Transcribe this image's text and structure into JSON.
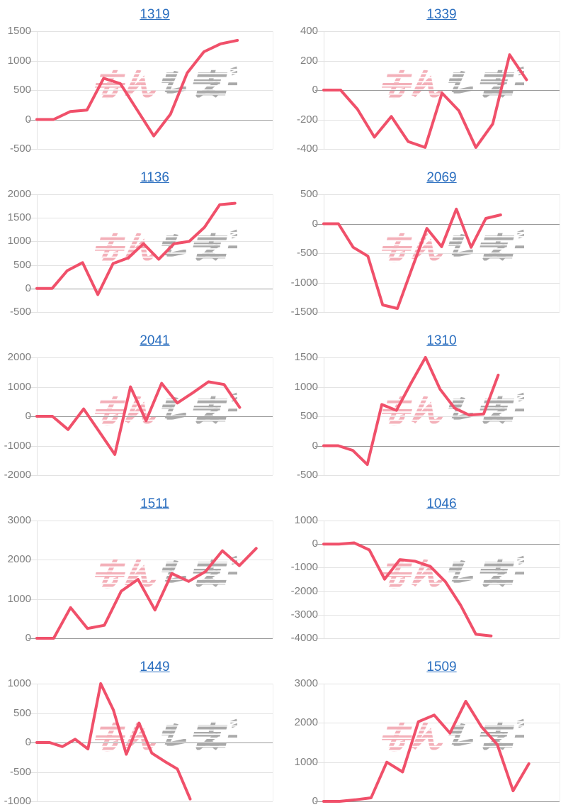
{
  "page": {
    "background": "#ffffff"
  },
  "style": {
    "line_color": "#f0506a",
    "grid_color": "#e3e3e3",
    "zero_color": "#9b9b9b",
    "tick_color": "#7f7f7f",
    "title_color": "#2a6ebf",
    "watermark_pink": "#f3aab4",
    "watermark_gray": "#a3a3a3"
  },
  "watermark": {
    "pink_text": "みん",
    "gray_text": "レポ"
  },
  "chart_data": [
    {
      "type": "line",
      "title": "1319",
      "ylabel": "",
      "grid": true,
      "yticks": [
        1500,
        1000,
        500,
        0,
        -500
      ],
      "ylim": [
        -500,
        1500
      ],
      "x_end_frac": 0.85,
      "values": [
        0,
        0,
        135,
        160,
        700,
        610,
        165,
        -280,
        90,
        790,
        1150,
        1285,
        1345
      ]
    },
    {
      "type": "line",
      "title": "1339",
      "ylabel": "",
      "grid": true,
      "yticks": [
        400,
        200,
        0,
        -200,
        -400
      ],
      "ylim": [
        -400,
        400
      ],
      "x_end_frac": 0.86,
      "values": [
        0,
        0,
        -130,
        -320,
        -180,
        -350,
        -390,
        -20,
        -140,
        -390,
        -230,
        240,
        70
      ]
    },
    {
      "type": "line",
      "title": "1136",
      "ylabel": "",
      "grid": true,
      "yticks": [
        2000,
        1500,
        1000,
        500,
        0,
        -500
      ],
      "ylim": [
        -500,
        2000
      ],
      "x_end_frac": 0.84,
      "values": [
        0,
        0,
        380,
        550,
        -130,
        530,
        650,
        950,
        620,
        950,
        1000,
        1300,
        1780,
        1810
      ]
    },
    {
      "type": "line",
      "title": "2069",
      "ylabel": "",
      "grid": true,
      "yticks": [
        500,
        0,
        -500,
        -1000,
        -1500
      ],
      "ylim": [
        -1500,
        500
      ],
      "x_end_frac": 0.75,
      "values": [
        0,
        0,
        -400,
        -550,
        -1380,
        -1440,
        -750,
        -80,
        -390,
        250,
        -400,
        90,
        150
      ]
    },
    {
      "type": "line",
      "title": "2041",
      "ylabel": "",
      "grid": true,
      "yticks": [
        2000,
        1000,
        0,
        -1000,
        -2000
      ],
      "ylim": [
        -2000,
        2000
      ],
      "x_end_frac": 0.86,
      "values": [
        0,
        0,
        -450,
        250,
        -520,
        -1300,
        1000,
        -150,
        1120,
        450,
        800,
        1170,
        1080,
        300
      ]
    },
    {
      "type": "line",
      "title": "1310",
      "ylabel": "",
      "grid": true,
      "yticks": [
        1500,
        1000,
        500,
        0,
        -500
      ],
      "ylim": [
        -500,
        1500
      ],
      "x_end_frac": 0.74,
      "values": [
        0,
        0,
        -80,
        -320,
        700,
        600,
        1060,
        1500,
        960,
        640,
        520,
        540,
        1200
      ]
    },
    {
      "type": "line",
      "title": "1511",
      "ylabel": "",
      "grid": true,
      "yticks": [
        3000,
        2000,
        1000,
        0
      ],
      "ylim": [
        0,
        3000
      ],
      "x_end_frac": 0.93,
      "values": [
        0,
        0,
        780,
        250,
        330,
        1200,
        1500,
        720,
        1650,
        1450,
        1700,
        2230,
        1850,
        2290
      ]
    },
    {
      "type": "line",
      "title": "1046",
      "ylabel": "",
      "grid": true,
      "yticks": [
        1000,
        0,
        -1000,
        -2000,
        -3000,
        -4000
      ],
      "ylim": [
        -4000,
        1000
      ],
      "x_end_frac": 0.71,
      "values": [
        0,
        0,
        50,
        -250,
        -1490,
        -660,
        -730,
        -950,
        -1600,
        -2600,
        -3830,
        -3900
      ]
    },
    {
      "type": "line",
      "title": "1449",
      "ylabel": "",
      "grid": true,
      "yticks": [
        1000,
        500,
        0,
        -500,
        -1000
      ],
      "ylim": [
        -1000,
        1000
      ],
      "x_end_frac": 0.65,
      "values": [
        0,
        0,
        -70,
        55,
        -110,
        1000,
        550,
        -200,
        330,
        -180,
        -320,
        -450,
        -960
      ]
    },
    {
      "type": "line",
      "title": "1509",
      "ylabel": "",
      "grid": true,
      "yticks": [
        3000,
        2000,
        1000,
        0
      ],
      "ylim": [
        0,
        3000
      ],
      "x_end_frac": 0.87,
      "values": [
        0,
        0,
        40,
        90,
        1000,
        750,
        2030,
        2200,
        1740,
        2550,
        1900,
        1450,
        270,
        960
      ]
    }
  ]
}
